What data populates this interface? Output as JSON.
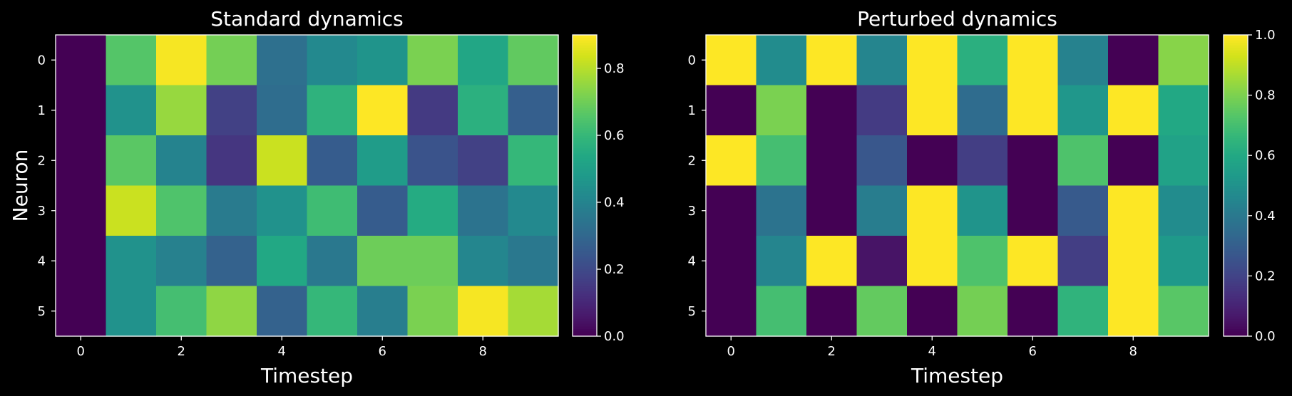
{
  "chart_data": [
    {
      "type": "heatmap",
      "title": "Standard dynamics",
      "xlabel": "Timestep",
      "ylabel": "Neuron",
      "x_ticks": [
        0,
        2,
        4,
        6,
        8
      ],
      "y_ticks": [
        0,
        1,
        2,
        3,
        4,
        5
      ],
      "colormap": "viridis",
      "colorbar_range": [
        0,
        0.9
      ],
      "colorbar_ticks": [
        "0.0",
        "0.2",
        "0.4",
        "0.6",
        "0.8"
      ],
      "values": [
        [
          0.0,
          0.66,
          0.89,
          0.71,
          0.33,
          0.42,
          0.46,
          0.72,
          0.53,
          0.68
        ],
        [
          0.0,
          0.45,
          0.76,
          0.17,
          0.32,
          0.58,
          0.9,
          0.15,
          0.57,
          0.27
        ],
        [
          0.0,
          0.67,
          0.4,
          0.14,
          0.83,
          0.26,
          0.49,
          0.23,
          0.17,
          0.6
        ],
        [
          0.0,
          0.83,
          0.65,
          0.37,
          0.45,
          0.62,
          0.26,
          0.55,
          0.34,
          0.42
        ],
        [
          0.0,
          0.45,
          0.39,
          0.28,
          0.54,
          0.36,
          0.7,
          0.7,
          0.41,
          0.36
        ],
        [
          0.0,
          0.45,
          0.63,
          0.75,
          0.28,
          0.6,
          0.38,
          0.72,
          0.89,
          0.78
        ]
      ]
    },
    {
      "type": "heatmap",
      "title": "Perturbed dynamics",
      "xlabel": "Timestep",
      "ylabel": "",
      "x_ticks": [
        0,
        2,
        4,
        6,
        8
      ],
      "y_ticks": [
        0,
        1,
        2,
        3,
        4,
        5
      ],
      "colormap": "viridis",
      "colorbar_range": [
        0,
        1
      ],
      "colorbar_ticks": [
        "0.0",
        "0.2",
        "0.4",
        "0.6",
        "0.8",
        "1.0"
      ],
      "values": [
        [
          1.0,
          0.48,
          1.0,
          0.45,
          1.0,
          0.63,
          1.0,
          0.44,
          0.0,
          0.82
        ],
        [
          0.0,
          0.8,
          0.0,
          0.17,
          1.0,
          0.35,
          1.0,
          0.52,
          1.0,
          0.6
        ],
        [
          1.0,
          0.7,
          0.0,
          0.27,
          0.0,
          0.18,
          0.0,
          0.72,
          0.0,
          0.57
        ],
        [
          0.0,
          0.38,
          0.0,
          0.42,
          1.0,
          0.51,
          0.0,
          0.28,
          1.0,
          0.48
        ],
        [
          0.0,
          0.45,
          1.0,
          0.05,
          1.0,
          0.72,
          1.0,
          0.18,
          1.0,
          0.53
        ],
        [
          0.0,
          0.7,
          0.0,
          0.76,
          0.0,
          0.79,
          0.0,
          0.65,
          1.0,
          0.74
        ]
      ]
    }
  ]
}
